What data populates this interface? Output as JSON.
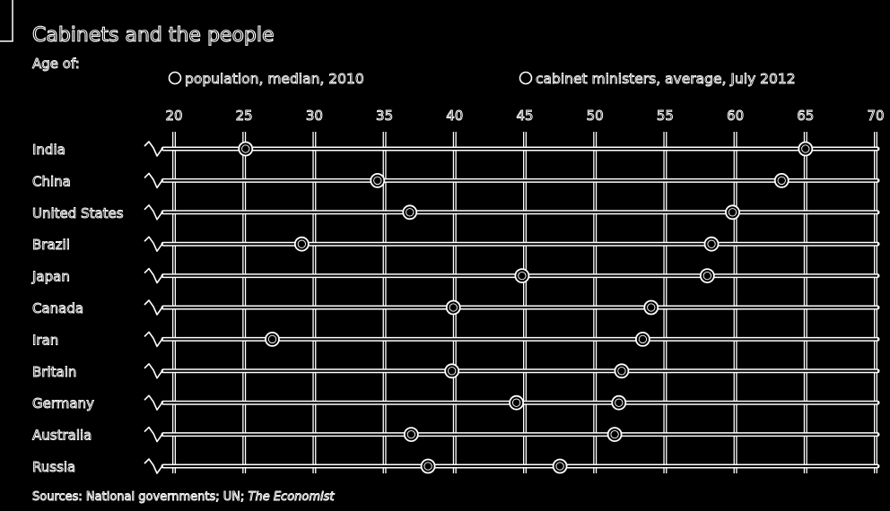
{
  "chart_data": {
    "type": "dot",
    "title": "Cabinets and the people",
    "subtitle": "Age of:",
    "x": {
      "min": 20,
      "max": 70,
      "ticks": [
        20,
        25,
        30,
        35,
        40,
        45,
        50,
        55,
        60,
        65,
        70
      ],
      "axis_break": true,
      "grid": true
    },
    "categories": [
      "India",
      "China",
      "United States",
      "Brazil",
      "Japan",
      "Canada",
      "Iran",
      "Britain",
      "Germany",
      "Australia",
      "Russia"
    ],
    "series": [
      {
        "name": "population, median, 2010",
        "values": [
          25.1,
          34.5,
          36.8,
          29.1,
          44.8,
          39.9,
          27.0,
          39.8,
          44.4,
          36.9,
          38.1
        ]
      },
      {
        "name": "cabinet ministers, average, July 2012",
        "values": [
          65.0,
          63.3,
          59.8,
          58.3,
          58.0,
          54.0,
          53.4,
          51.9,
          51.7,
          51.4,
          47.5
        ]
      }
    ],
    "legend_position": "top",
    "source": {
      "prefix": "Sources: National governments; UN; ",
      "italic": "The Economist"
    }
  },
  "colors": {
    "background": "#000000",
    "foreground": "#ffffff"
  }
}
